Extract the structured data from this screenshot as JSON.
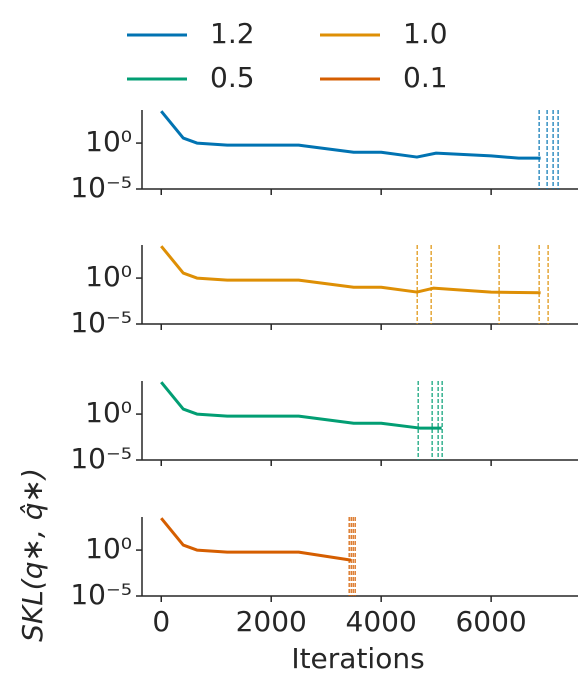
{
  "chart_data": {
    "type": "line",
    "log_scale": true,
    "xlabel": "Iterations",
    "ylabel": "SKL(q∗, q̂∗)",
    "xlim": [
      -350,
      7580
    ],
    "xticks": [
      0,
      2000,
      4000,
      6000
    ],
    "ylim": [
      1e-05,
      4000
    ],
    "yticks": [
      {
        "value": 1,
        "label": "10⁰"
      },
      {
        "value": 1e-05,
        "label": "10⁻⁵"
      }
    ],
    "series": [
      {
        "name": "1.2",
        "color": "#0173b2",
        "x": [
          0,
          400,
          650,
          1200,
          2500,
          2600,
          3500,
          4000,
          4650,
          5000,
          6000,
          6500,
          6900
        ],
        "values": [
          3000,
          3.5,
          1,
          0.6,
          0.6,
          0.5,
          0.1,
          0.1,
          0.03,
          0.08,
          0.04,
          0.023,
          0.023
        ],
        "vlines": [
          6873,
          7018,
          7127,
          7218
        ]
      },
      {
        "name": "1.0",
        "color": "#de8f05",
        "x": [
          0,
          400,
          650,
          1200,
          2500,
          3500,
          4000,
          4650,
          4950,
          6000,
          6900
        ],
        "values": [
          3000,
          3.5,
          1,
          0.6,
          0.6,
          0.1,
          0.1,
          0.03,
          0.08,
          0.03,
          0.025
        ],
        "vlines": [
          4655,
          4909,
          6145,
          6873,
          7036
        ]
      },
      {
        "name": "0.5",
        "color": "#029e73",
        "x": [
          0,
          400,
          650,
          1200,
          2500,
          3500,
          4000,
          4700,
          5100
        ],
        "values": [
          3000,
          3.5,
          1,
          0.6,
          0.6,
          0.1,
          0.1,
          0.03,
          0.03
        ],
        "vlines": [
          4673,
          4927,
          5036,
          5109
        ]
      },
      {
        "name": "0.1",
        "color": "#d55e00",
        "x": [
          0,
          400,
          650,
          1200,
          2500,
          3450
        ],
        "values": [
          3000,
          3.5,
          1,
          0.6,
          0.6,
          0.08
        ],
        "vlines": [
          3418,
          3455,
          3491,
          3527
        ]
      }
    ]
  }
}
